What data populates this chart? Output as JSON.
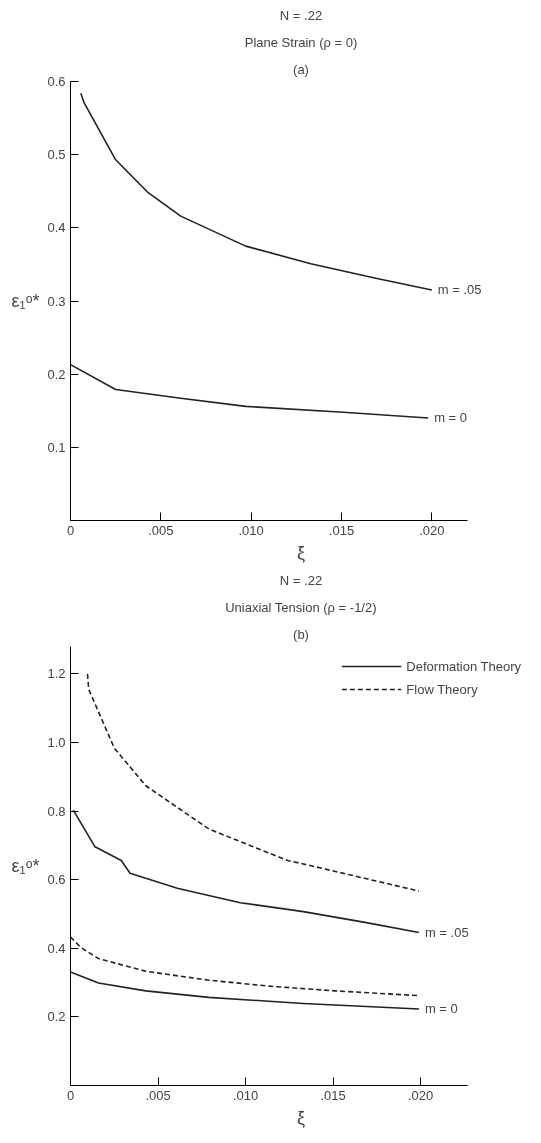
{
  "chart_data": [
    {
      "type": "line",
      "xlabel": "ξ",
      "ylabel": "ε₁ᵒ*",
      "xlim": [
        0,
        0.022
      ],
      "ylim": [
        0,
        0.6
      ],
      "xticks": [
        {
          "value": 0,
          "label": "0"
        },
        {
          "value": 0.005,
          "label": ".005"
        },
        {
          "value": 0.01,
          "label": ".010"
        },
        {
          "value": 0.015,
          "label": ".015"
        },
        {
          "value": 0.02,
          "label": ".020"
        }
      ],
      "yticks": [
        0.1,
        0.2,
        0.3,
        0.4,
        0.5,
        0.6
      ],
      "grid": false,
      "legend": false,
      "line_style": "solid",
      "annotations": [
        "N = .22",
        "Plane Strain (ρ = 0)",
        "(a)",
        {
          "text": "m = .05",
          "x": 0.02,
          "y": 0.315
        },
        {
          "text": "m = 0",
          "x": 0.0198,
          "y": 0.14
        }
      ],
      "series": [
        {
          "color": "#222222",
          "x": [
            0.00057,
            0.00075,
            0.0025,
            0.0043,
            0.0061,
            0.0097,
            0.0133,
            0.0169,
            0.02
          ],
          "values": [
            0.584,
            0.571,
            0.493,
            0.448,
            0.416,
            0.375,
            0.351,
            0.331,
            0.315
          ]
        },
        {
          "color": "#222222",
          "x": [
            0,
            0.0025,
            0.0061,
            0.0097,
            0.0151,
            0.0198
          ],
          "values": [
            0.213,
            0.179,
            0.167,
            0.156,
            0.148,
            0.14
          ]
        }
      ]
    },
    {
      "type": "line",
      "xlabel": "ξ",
      "ylabel": "ε₁ᵒ*",
      "xlim": [
        0,
        0.0227
      ],
      "ylim": [
        0,
        1.28
      ],
      "xticks": [
        {
          "value": 0,
          "label": "0"
        },
        {
          "value": 0.005,
          "label": ".005"
        },
        {
          "value": 0.01,
          "label": ".010"
        },
        {
          "value": 0.015,
          "label": ".015"
        },
        {
          "value": 0.02,
          "label": ".020"
        }
      ],
      "yticks": [
        0.2,
        0.4,
        0.6,
        0.8,
        {
          "value": 1.0,
          "label": "1.0"
        },
        1.2
      ],
      "grid": false,
      "legend": "top right",
      "annotations": [
        "N = .22",
        "Uniaxial Tension (ρ = -1/2)",
        "(b)",
        {
          "text": "m = .05",
          "x": 0.0199,
          "y": 0.446
        },
        {
          "text": "m = 0",
          "x": 0.0199,
          "y": 0.223
        }
      ],
      "series": [
        {
          "name": "Deformation Theory",
          "line_style": "solid",
          "color": "#222222",
          "x": [
            0.00016,
            0.0014,
            0.0029,
            0.0034,
            0.0061,
            0.0097,
            0.0133,
            0.0169,
            0.0199
          ],
          "values": [
            0.803,
            0.696,
            0.656,
            0.619,
            0.575,
            0.533,
            0.507,
            0.475,
            0.446
          ]
        },
        {
          "name": "Flow Theory",
          "line_style": "dashed",
          "color": "#222222",
          "x": [
            0.00097,
            0.00104,
            0.0025,
            0.0043,
            0.0079,
            0.0124,
            0.0133,
            0.0199
          ],
          "values": [
            1.2,
            1.155,
            0.984,
            0.874,
            0.748,
            0.656,
            0.646,
            0.567
          ]
        },
        {
          "line_style": "dashed",
          "color": "#222222",
          "x": [
            0,
            0.0006,
            0.0016,
            0.0043,
            0.0079,
            0.0115,
            0.0151,
            0.0199
          ],
          "values": [
            0.433,
            0.402,
            0.37,
            0.333,
            0.307,
            0.289,
            0.276,
            0.262
          ]
        },
        {
          "line_style": "solid",
          "color": "#222222",
          "x": [
            0,
            0.0016,
            0.0043,
            0.0079,
            0.0133,
            0.0199
          ],
          "values": [
            0.331,
            0.299,
            0.276,
            0.257,
            0.239,
            0.223
          ]
        }
      ]
    }
  ]
}
